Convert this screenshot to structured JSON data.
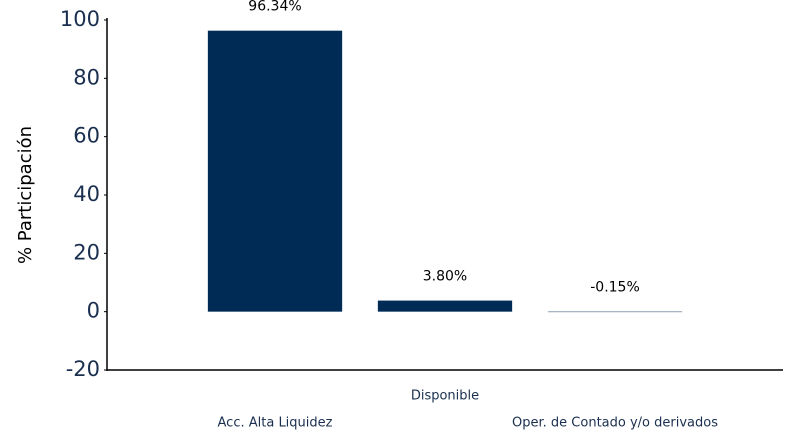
{
  "chart_data": {
    "type": "bar",
    "y_label": "% Participación",
    "categories": [
      "Acc. Alta Liquidez",
      "Disponible",
      "Oper. de Contado y/o derivados"
    ],
    "values": [
      96.34,
      3.8,
      -0.15
    ],
    "value_labels": [
      "96.34%",
      "3.80%",
      "-0.15%"
    ],
    "color": "#002b55",
    "ylim": [
      -20,
      100
    ],
    "yticks": [
      -20,
      0,
      20,
      40,
      60,
      80,
      100
    ],
    "grid": false
  }
}
